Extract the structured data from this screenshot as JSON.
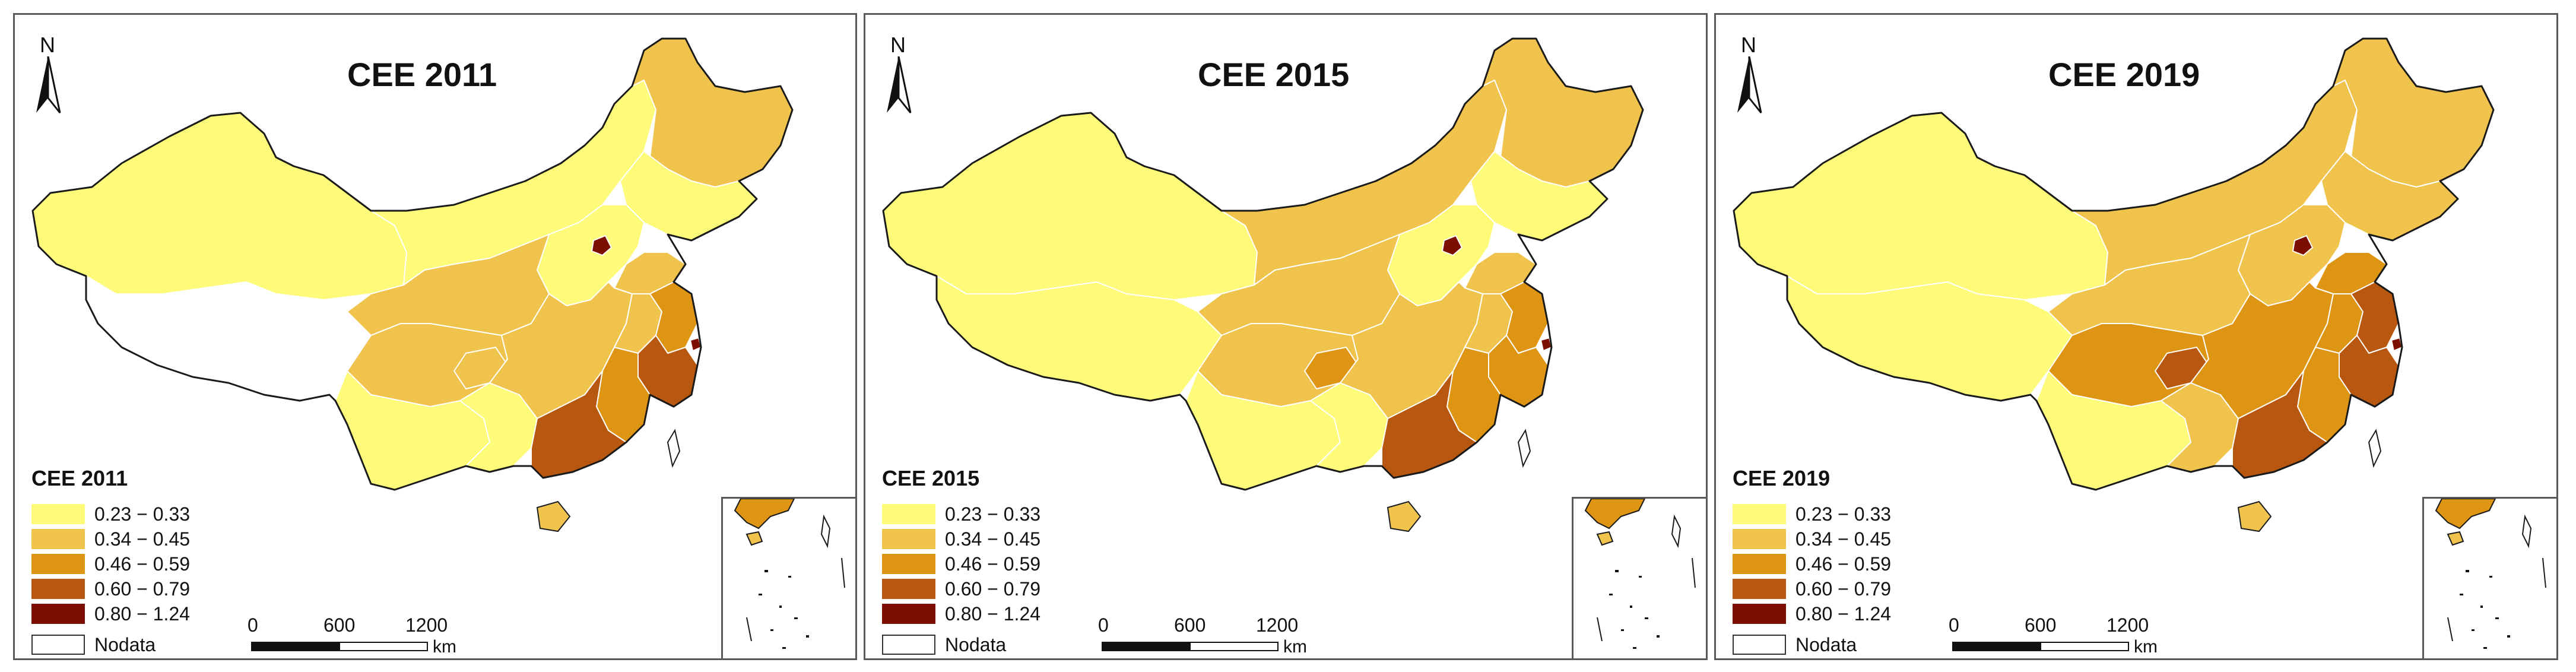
{
  "figure": {
    "legend_classes": [
      {
        "range": "0.23 − 0.33",
        "color": "#fefb7a"
      },
      {
        "range": "0.34 − 0.45",
        "color": "#f0c34d"
      },
      {
        "range": "0.46 − 0.59",
        "color": "#df9514"
      },
      {
        "range": "0.60 − 0.79",
        "color": "#b8570f"
      },
      {
        "range": "0.80 − 1.24",
        "color": "#7c0f00"
      }
    ],
    "nodata_label": "Nodata",
    "north_label": "N",
    "scale": {
      "t0": "0",
      "t1": "600",
      "t2": "1200",
      "unit": "km"
    }
  },
  "panels": [
    {
      "title": "CEE 2011",
      "legend_title": "CEE 2011",
      "regions": {
        "northwest": "#fefb7a",
        "tibet": "#ffffff",
        "inner_mongolia": "#fefb7a",
        "northeast": "#f0c34d",
        "northeast_inner": "#fefb7a",
        "north_china": "#fefb7a",
        "central_west": "#f0c34d",
        "southwest": "#f0c34d",
        "yunnan_guizhou": "#fefb7a",
        "central": "#f0c34d",
        "east": "#f0c34d",
        "jiangsu": "#df9514",
        "zhejiang": "#b8570f",
        "fujian": "#df9514",
        "guangdong": "#b8570f",
        "guangxi": "#fefb7a",
        "hainan": "#f0c34d",
        "beijing": "#7c0f00",
        "shanghai": "#7c0f00",
        "shandong": "#f0c34d",
        "sichuan_center": "#f0c34d"
      }
    },
    {
      "title": "CEE 2015",
      "legend_title": "CEE 2015",
      "regions": {
        "northwest": "#fefb7a",
        "tibet": "#fefb7a",
        "inner_mongolia": "#f0c34d",
        "northeast": "#f0c34d",
        "northeast_inner": "#fefb7a",
        "north_china": "#fefb7a",
        "central_west": "#f0c34d",
        "southwest": "#f0c34d",
        "yunnan_guizhou": "#fefb7a",
        "central": "#f0c34d",
        "east": "#f0c34d",
        "jiangsu": "#df9514",
        "zhejiang": "#df9514",
        "fujian": "#df9514",
        "guangdong": "#b8570f",
        "guangxi": "#fefb7a",
        "hainan": "#f0c34d",
        "beijing": "#7c0f00",
        "shanghai": "#7c0f00",
        "shandong": "#f0c34d",
        "sichuan_center": "#df9514"
      }
    },
    {
      "title": "CEE 2019",
      "legend_title": "CEE 2019",
      "regions": {
        "northwest": "#fefb7a",
        "tibet": "#fefb7a",
        "inner_mongolia": "#f0c34d",
        "northeast": "#f0c34d",
        "northeast_inner": "#f0c34d",
        "north_china": "#f0c34d",
        "central_west": "#f0c34d",
        "southwest": "#df9514",
        "yunnan_guizhou": "#fefb7a",
        "central": "#df9514",
        "east": "#df9514",
        "jiangsu": "#b8570f",
        "zhejiang": "#b8570f",
        "fujian": "#df9514",
        "guangdong": "#b8570f",
        "guangxi": "#f0c34d",
        "hainan": "#f0c34d",
        "beijing": "#7c0f00",
        "shanghai": "#7c0f00",
        "shandong": "#df9514",
        "sichuan_center": "#b8570f"
      }
    }
  ]
}
